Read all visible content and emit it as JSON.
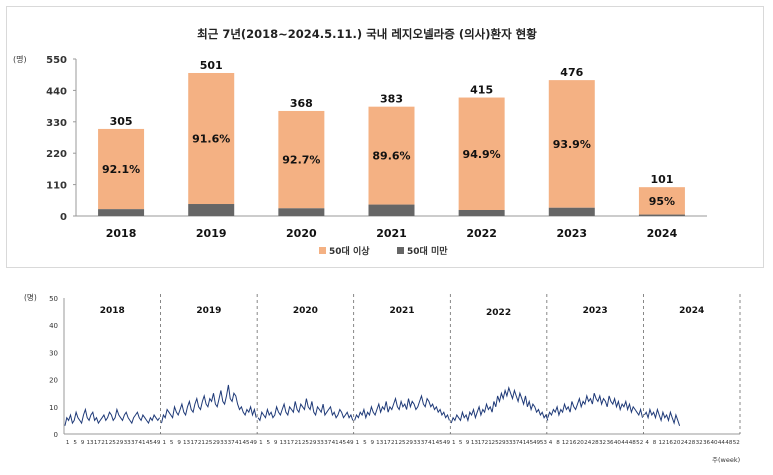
{
  "chart_data": [
    {
      "type": "bar",
      "title": "최근 7년(2018~2024.5.11.) 국내 레지오넬라증 (의사)환자 현황",
      "ylabel_unit": "(명)",
      "ylim": [
        0,
        550
      ],
      "yticks": [
        "0",
        "110",
        "220",
        "330",
        "440",
        "550"
      ],
      "categories": [
        "2018",
        "2019",
        "2020",
        "2021",
        "2022",
        "2023",
        "2024"
      ],
      "totals": [
        305,
        501,
        368,
        383,
        415,
        476,
        101
      ],
      "total_labels": [
        "305",
        "501",
        "368",
        "383",
        "415",
        "476",
        "101"
      ],
      "pct_labels": [
        "92.1%",
        "91.6%",
        "92.7%",
        "89.6%",
        "94.9%",
        "93.9%",
        "95%"
      ],
      "series": [
        {
          "name": "50대 이상",
          "color": "#f4b183",
          "values": [
            281,
            459,
            341,
            343,
            394,
            447,
            96
          ]
        },
        {
          "name": "50대 미만",
          "color": "#666666",
          "values": [
            24,
            42,
            27,
            40,
            21,
            29,
            5
          ]
        }
      ],
      "legend": "bottom",
      "grid": false
    },
    {
      "type": "line",
      "ylabel_unit": "(명)",
      "xlabel": "주(week)",
      "ylim": [
        0,
        50
      ],
      "yticks": [
        "0",
        "10",
        "20",
        "30",
        "40",
        "50"
      ],
      "line_color": "#1f3a78",
      "years": [
        "2018",
        "2019",
        "2020",
        "2021",
        "2022",
        "2023",
        "2024"
      ],
      "week_tick_labels": [
        [
          "1",
          "5",
          "9",
          "13",
          "17",
          "21",
          "25",
          "29",
          "33",
          "37",
          "41",
          "45",
          "49"
        ],
        [
          "1",
          "5",
          "9",
          "13",
          "17",
          "21",
          "25",
          "29",
          "33",
          "37",
          "41",
          "45",
          "49"
        ],
        [
          "1",
          "5",
          "9",
          "13",
          "17",
          "21",
          "25",
          "29",
          "33",
          "37",
          "41",
          "45",
          "49"
        ],
        [
          "1",
          "5",
          "9",
          "13",
          "17",
          "21",
          "25",
          "29",
          "33",
          "37",
          "41",
          "45",
          "49"
        ],
        [
          "1",
          "5",
          "9",
          "13",
          "17",
          "21",
          "25",
          "29",
          "33",
          "37",
          "41",
          "45",
          "49",
          "53"
        ],
        [
          "4",
          "8",
          "12",
          "16",
          "20",
          "24",
          "28",
          "32",
          "36",
          "40",
          "44",
          "48",
          "52"
        ],
        [
          "4",
          "8",
          "12",
          "16",
          "20",
          "24",
          "28",
          "32",
          "36",
          "40",
          "44",
          "48",
          "52"
        ]
      ],
      "series": [
        {
          "year": "2018",
          "values": [
            3,
            6,
            5,
            7,
            4,
            5,
            8,
            6,
            5,
            4,
            7,
            9,
            6,
            5,
            7,
            8,
            5,
            6,
            4,
            5,
            6,
            7,
            5,
            6,
            8,
            7,
            5,
            6,
            9,
            7,
            6,
            5,
            7,
            8,
            6,
            5,
            4,
            6,
            7,
            8,
            6,
            5,
            7,
            6,
            5,
            4,
            6,
            5,
            7,
            6,
            5,
            6
          ]
        },
        {
          "year": "2019",
          "values": [
            4,
            7,
            6,
            9,
            8,
            7,
            6,
            10,
            8,
            7,
            9,
            11,
            8,
            7,
            10,
            12,
            9,
            8,
            11,
            13,
            10,
            9,
            12,
            14,
            11,
            10,
            13,
            12,
            15,
            11,
            10,
            13,
            16,
            12,
            11,
            14,
            18,
            13,
            12,
            15,
            14,
            11,
            9,
            10,
            8,
            7,
            9,
            8,
            10,
            7,
            9,
            6
          ]
        },
        {
          "year": "2020",
          "values": [
            6,
            5,
            8,
            7,
            6,
            9,
            7,
            8,
            6,
            7,
            10,
            8,
            7,
            9,
            11,
            8,
            7,
            10,
            9,
            8,
            12,
            9,
            8,
            11,
            10,
            9,
            13,
            10,
            9,
            12,
            8,
            7,
            10,
            9,
            8,
            11,
            7,
            8,
            9,
            10,
            7,
            8,
            6,
            7,
            9,
            8,
            6,
            7,
            8,
            6,
            7,
            5
          ]
        },
        {
          "year": "2021",
          "values": [
            5,
            7,
            6,
            8,
            7,
            9,
            6,
            8,
            7,
            10,
            8,
            7,
            9,
            11,
            8,
            10,
            9,
            12,
            8,
            10,
            9,
            11,
            13,
            10,
            9,
            12,
            10,
            11,
            9,
            13,
            10,
            12,
            11,
            9,
            10,
            12,
            14,
            11,
            10,
            13,
            12,
            10,
            11,
            9,
            10,
            8,
            9,
            7,
            8,
            6,
            7,
            5
          ]
        },
        {
          "year": "2022",
          "values": [
            4,
            6,
            5,
            7,
            6,
            5,
            8,
            6,
            7,
            5,
            8,
            7,
            9,
            6,
            8,
            10,
            7,
            9,
            8,
            11,
            9,
            10,
            8,
            12,
            10,
            14,
            12,
            15,
            13,
            16,
            14,
            17,
            15,
            13,
            16,
            14,
            12,
            15,
            13,
            11,
            14,
            10,
            12,
            9,
            11,
            10,
            8,
            9,
            7,
            8,
            6,
            7,
            5
          ]
        },
        {
          "year": "2023",
          "values": [
            6,
            8,
            7,
            9,
            8,
            10,
            7,
            9,
            8,
            11,
            9,
            10,
            8,
            12,
            10,
            9,
            11,
            13,
            10,
            12,
            11,
            14,
            12,
            13,
            11,
            15,
            13,
            12,
            14,
            11,
            13,
            12,
            10,
            14,
            12,
            11,
            13,
            10,
            12,
            9,
            11,
            10,
            12,
            9,
            11,
            8,
            10,
            9,
            8,
            7,
            9,
            6
          ]
        },
        {
          "year": "2024",
          "values": [
            7,
            8,
            6,
            9,
            7,
            8,
            6,
            9,
            7,
            5,
            8,
            6,
            7,
            5,
            8,
            6,
            4,
            7,
            5,
            3
          ]
        }
      ]
    }
  ]
}
